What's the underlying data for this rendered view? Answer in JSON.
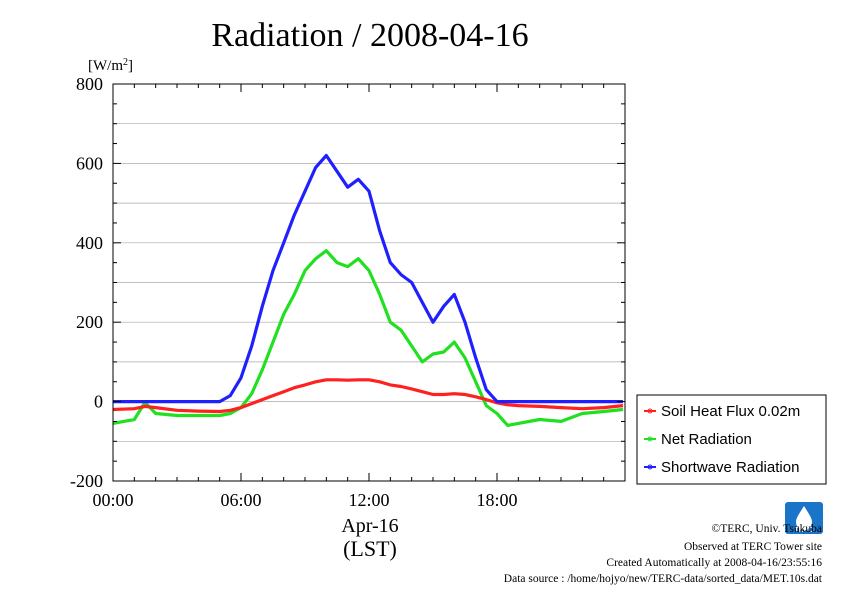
{
  "chart_data": {
    "type": "line",
    "title": "Radiation / 2008-04-16",
    "ylabel": "[W/m²]",
    "ylim": [
      -200,
      800
    ],
    "yticks": [
      -200,
      0,
      200,
      400,
      600,
      800
    ],
    "xlim": [
      0,
      24
    ],
    "xticks": [
      0,
      6,
      12,
      18
    ],
    "xtick_labels": [
      "00:00",
      "06:00",
      "12:00",
      "18:00"
    ],
    "xlabel_date": "Apr-16",
    "xlabel_tz": "(LST)",
    "grid": "horizontal",
    "legend_position": "right",
    "x": [
      0,
      1,
      1.5,
      2,
      3,
      4,
      5,
      5.5,
      6,
      6.5,
      7,
      7.5,
      8,
      8.5,
      9,
      9.5,
      10,
      10.5,
      11,
      11.5,
      12,
      12.5,
      13,
      13.5,
      14,
      14.5,
      15,
      15.5,
      16,
      16.5,
      17,
      17.5,
      18,
      18.5,
      19,
      20,
      21,
      22,
      23,
      23.9
    ],
    "series": [
      {
        "name": "Soil Heat Flux 0.02m",
        "color": "#ff2020",
        "values": [
          -20,
          -18,
          -12,
          -15,
          -22,
          -24,
          -25,
          -22,
          -15,
          -5,
          5,
          15,
          25,
          35,
          42,
          50,
          55,
          55,
          54,
          55,
          55,
          50,
          42,
          38,
          32,
          25,
          18,
          18,
          20,
          18,
          12,
          5,
          -3,
          -8,
          -10,
          -12,
          -15,
          -18,
          -15,
          -10
        ]
      },
      {
        "name": "Net Radiation",
        "color": "#20e020",
        "values": [
          -55,
          -45,
          -2,
          -30,
          -35,
          -35,
          -35,
          -30,
          -15,
          20,
          80,
          150,
          220,
          270,
          330,
          360,
          380,
          350,
          340,
          360,
          330,
          270,
          200,
          180,
          140,
          100,
          120,
          125,
          150,
          110,
          50,
          -10,
          -30,
          -60,
          -55,
          -45,
          -50,
          -30,
          -25,
          -20
        ]
      },
      {
        "name": "Shortwave Radiation",
        "color": "#2020ff",
        "values": [
          0,
          0,
          0,
          0,
          0,
          0,
          0,
          15,
          60,
          140,
          240,
          330,
          400,
          470,
          530,
          590,
          620,
          580,
          540,
          560,
          530,
          430,
          350,
          320,
          300,
          250,
          200,
          240,
          270,
          200,
          110,
          30,
          0,
          0,
          0,
          0,
          0,
          0,
          0,
          0
        ]
      }
    ]
  },
  "credits": {
    "copyright": "©TERC, Univ. Tsukuba",
    "site": "Observed at TERC Tower site",
    "created": "Created Automatically at 2008-04-16/23:55:16",
    "source": "Data source : /home/hojyo/new/TERC-data/sorted_data/MET.10s.dat"
  },
  "logo": {
    "text": "TERC",
    "color": "#1a74c8"
  }
}
